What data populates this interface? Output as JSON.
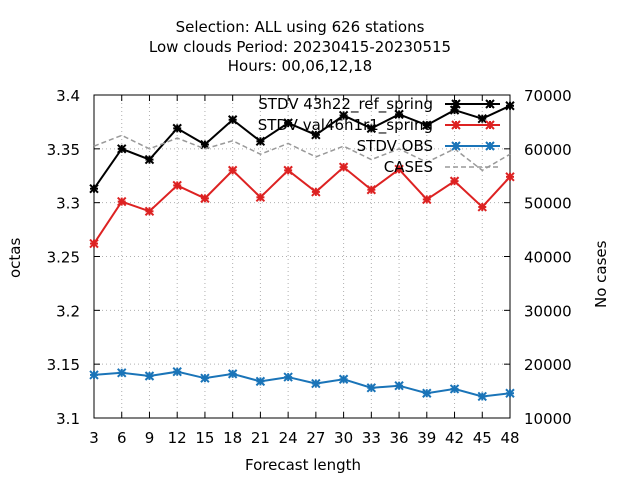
{
  "chart_data": {
    "type": "line",
    "title_lines": [
      "Selection: ALL using   626 stations",
      "Low clouds   Period: 20230415-20230515",
      "Hours:  00,06,12,18"
    ],
    "xlabel": "Forecast length",
    "ylabel": "octas",
    "y2label": "No cases",
    "x": [
      3,
      6,
      9,
      12,
      15,
      18,
      21,
      24,
      27,
      30,
      33,
      36,
      39,
      42,
      45,
      48
    ],
    "xlim": [
      3,
      48
    ],
    "ylim": [
      3.1,
      3.4
    ],
    "y2lim": [
      10000,
      70000
    ],
    "y_ticks": [
      "3.1",
      "3.15",
      "3.2",
      "3.25",
      "3.3",
      "3.35",
      "3.4"
    ],
    "y2_ticks": [
      "10000",
      "20000",
      "30000",
      "40000",
      "50000",
      "60000",
      "70000"
    ],
    "grid": true,
    "legend_position": "top-right",
    "series": [
      {
        "name": "STDV 43h22_ref_spring",
        "color": "#000000",
        "axis": "y",
        "marker": "star",
        "values": [
          3.313,
          3.35,
          3.34,
          3.369,
          3.354,
          3.377,
          3.357,
          3.374,
          3.363,
          3.381,
          3.369,
          3.382,
          3.372,
          3.386,
          3.378,
          3.39
        ]
      },
      {
        "name": "STDV val46h1r1_spring",
        "color": "#dd2222",
        "axis": "y",
        "marker": "star",
        "values": [
          3.262,
          3.301,
          3.292,
          3.316,
          3.304,
          3.33,
          3.305,
          3.33,
          3.31,
          3.333,
          3.312,
          3.331,
          3.303,
          3.32,
          3.296,
          3.324
        ]
      },
      {
        "name": "STDV OBS",
        "color": "#1a74b8",
        "axis": "y",
        "marker": "star",
        "values": [
          3.14,
          3.142,
          3.139,
          3.143,
          3.137,
          3.141,
          3.134,
          3.138,
          3.132,
          3.136,
          3.128,
          3.13,
          3.123,
          3.127,
          3.12,
          3.123
        ]
      },
      {
        "name": "CASES",
        "color": "#999999",
        "axis": "y2",
        "marker": "none",
        "dashed": true,
        "values": [
          60500,
          62500,
          60000,
          62000,
          60000,
          61500,
          59000,
          61000,
          58500,
          60500,
          58000,
          60000,
          57500,
          60000,
          56000,
          59000
        ]
      }
    ]
  }
}
